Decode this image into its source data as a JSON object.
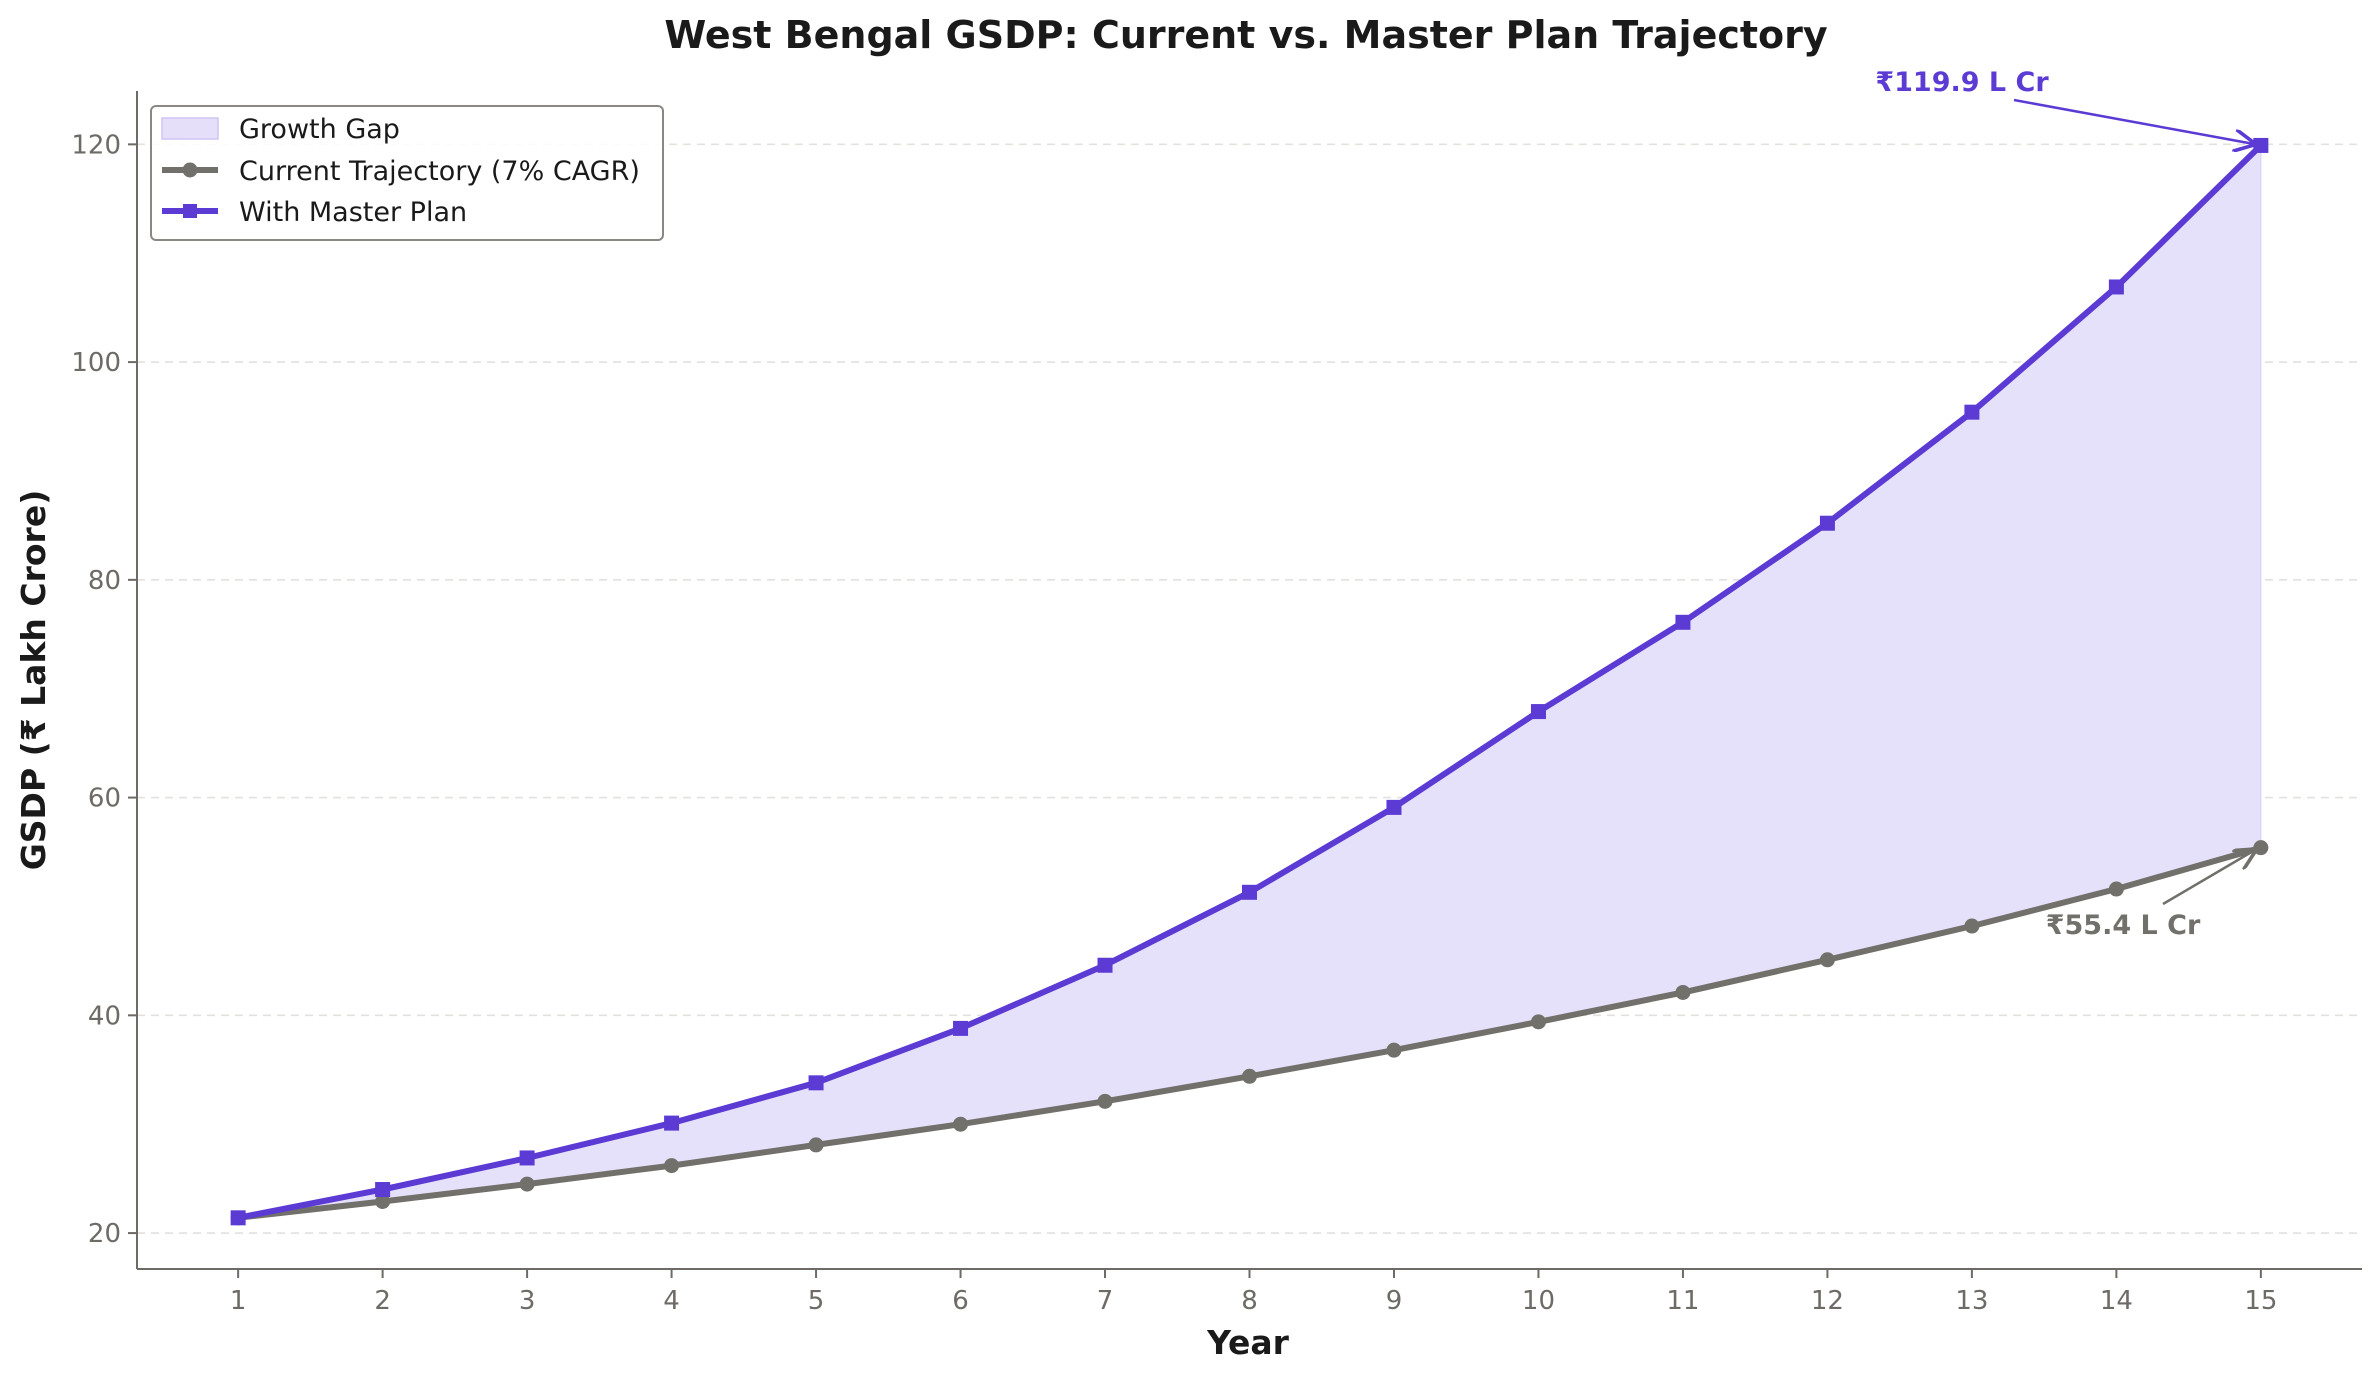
{
  "chart_data": {
    "type": "line",
    "title": "West Bengal GSDP: Current vs. Master Plan Trajectory",
    "xlabel": "Year",
    "ylabel": "GSDP (₹ Lakh Crore)",
    "x": [
      1,
      2,
      3,
      4,
      5,
      6,
      7,
      8,
      9,
      10,
      11,
      12,
      13,
      14,
      15
    ],
    "xlim": [
      0.3,
      15.7
    ],
    "ylim": [
      16.7,
      124.9
    ],
    "yticks": [
      20,
      40,
      60,
      80,
      100,
      120
    ],
    "grid": "y-dashed",
    "legend_position": "top-left",
    "legend": {
      "fill_label": "Growth Gap",
      "fill_color": "#e5dffa"
    },
    "series": [
      {
        "name": "Current Trajectory (7% CAGR)",
        "color": "#72706b",
        "marker": "circle",
        "values": [
          21.4,
          22.9,
          24.5,
          26.2,
          28.1,
          30.0,
          32.1,
          34.4,
          36.8,
          39.4,
          42.1,
          45.1,
          48.2,
          51.6,
          55.4
        ]
      },
      {
        "name": "With Master Plan",
        "color": "#5b3bd4",
        "marker": "square",
        "values": [
          21.4,
          24.0,
          26.9,
          30.1,
          33.8,
          38.8,
          44.6,
          51.3,
          59.1,
          67.9,
          76.1,
          85.2,
          95.4,
          106.9,
          119.9
        ]
      }
    ],
    "annotations": [
      {
        "text": "₹119.9 L Cr",
        "x": 15,
        "y": 119.9,
        "color": "#5b3bd4"
      },
      {
        "text": "₹55.4 L Cr",
        "x": 15,
        "y": 55.4,
        "color": "#72706b"
      }
    ]
  }
}
